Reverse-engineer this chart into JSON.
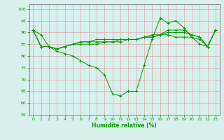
{
  "xlabel": "Humidité relative (%)",
  "background_color": "#d8f0ec",
  "grid_color": "#ddaaaa",
  "line_color": "#009900",
  "xlim": [
    -0.5,
    23.5
  ],
  "ylim": [
    55,
    102
  ],
  "yticks": [
    55,
    60,
    65,
    70,
    75,
    80,
    85,
    90,
    95,
    100
  ],
  "xticks": [
    0,
    1,
    2,
    3,
    4,
    5,
    6,
    7,
    8,
    9,
    10,
    11,
    12,
    13,
    14,
    15,
    16,
    17,
    18,
    19,
    20,
    21,
    22,
    23
  ],
  "series": [
    [
      91,
      89,
      84,
      82,
      81,
      80,
      78,
      76,
      75,
      72,
      64,
      63,
      65,
      65,
      76,
      87,
      96,
      94,
      95,
      92,
      88,
      85,
      84,
      91
    ],
    [
      91,
      84,
      84,
      83,
      84,
      85,
      85,
      85,
      85,
      86,
      86,
      86,
      87,
      87,
      88,
      89,
      89,
      89,
      88,
      88,
      88,
      87,
      84,
      91
    ],
    [
      91,
      84,
      84,
      83,
      84,
      85,
      86,
      86,
      86,
      86,
      86,
      87,
      87,
      87,
      88,
      88,
      89,
      90,
      90,
      90,
      89,
      88,
      84,
      91
    ],
    [
      91,
      84,
      84,
      83,
      84,
      85,
      86,
      86,
      87,
      87,
      87,
      87,
      87,
      87,
      88,
      88,
      89,
      91,
      91,
      91,
      89,
      88,
      84,
      91
    ]
  ]
}
